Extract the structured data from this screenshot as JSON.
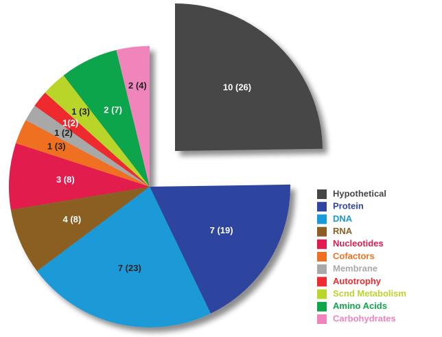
{
  "chart_data": {
    "type": "pie",
    "categories": [
      "Hypothetical",
      "Protein",
      "DNA",
      "RNA",
      "Nucleotides",
      "Cofactors",
      "Membrane",
      "Autotrophy",
      "Scnd Metabolism",
      "Amino Acids",
      "Carbohydrates"
    ],
    "values": [
      26,
      19,
      23,
      8,
      8,
      3,
      2,
      2,
      3,
      7,
      4
    ],
    "value_labels": [
      "10 (26)",
      "7 (19)",
      "7 (23)",
      "4 (8)",
      "3 (8)",
      "1 (3)",
      "1 (2)",
      "1(2)",
      "1 (3)",
      "2 (7)",
      "2 (4)"
    ],
    "colors": [
      "#464646",
      "#2f45a0",
      "#1a9ad8",
      "#8b5e24",
      "#e21a4e",
      "#f07022",
      "#a8a8a8",
      "#ee2b2f",
      "#bad52c",
      "#0ea54b",
      "#ef85bb"
    ],
    "exploded": [
      true,
      false,
      false,
      false,
      false,
      false,
      false,
      false,
      false,
      false,
      false
    ],
    "legend": "right"
  }
}
